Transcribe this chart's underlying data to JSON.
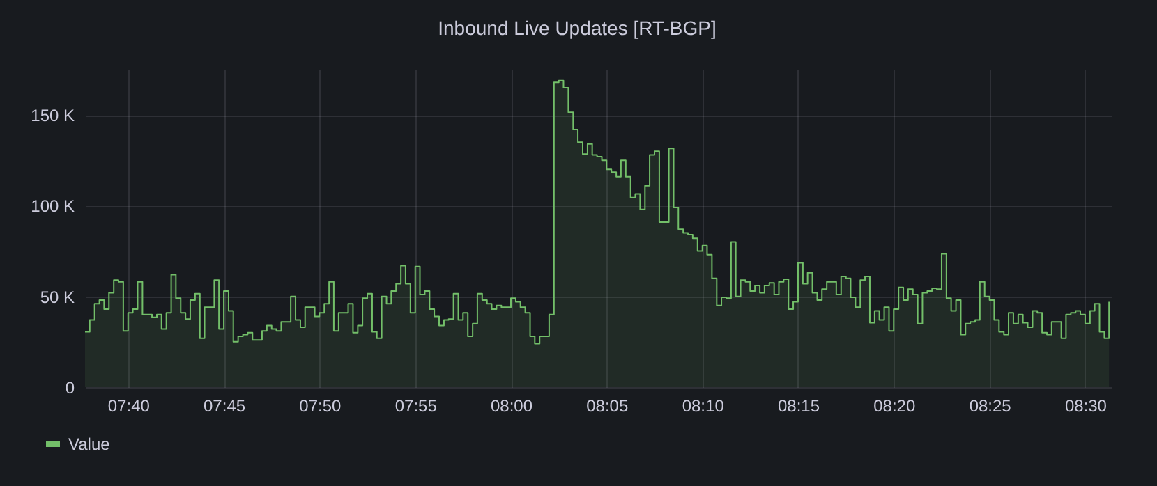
{
  "chart_data": {
    "type": "area",
    "title": "Inbound Live Updates [RT-BGP]",
    "x": [
      7.6292,
      7.6333,
      7.6375,
      7.6417,
      7.6458,
      7.65,
      7.6542,
      7.6583,
      7.6625,
      7.6667,
      7.6708,
      7.675,
      7.6792,
      7.6833,
      7.6875,
      7.6917,
      7.6958,
      7.7,
      7.7042,
      7.7083,
      7.7125,
      7.7167,
      7.7208,
      7.725,
      7.7292,
      7.7333,
      7.7375,
      7.7417,
      7.7458,
      7.75,
      7.7542,
      7.7583,
      7.7625,
      7.7667,
      7.7708,
      7.775,
      7.7792,
      7.7833,
      7.7875,
      7.7917,
      7.7958,
      7.8,
      7.8042,
      7.8083,
      7.8125,
      7.8167,
      7.8208,
      7.825,
      7.8292,
      7.8333,
      7.8375,
      7.8417,
      7.8458,
      7.85,
      7.8542,
      7.8583,
      7.8625,
      7.8667,
      7.8708,
      7.875,
      7.8792,
      7.8833,
      7.8875,
      7.8917,
      7.8958,
      7.9,
      7.9042,
      7.9083,
      7.9125,
      7.9167,
      7.9208,
      7.925,
      7.9292,
      7.9333,
      7.9375,
      7.9417,
      7.9458,
      7.95,
      7.9542,
      7.9583,
      7.9625,
      7.9667,
      7.9708,
      7.975,
      7.9792,
      7.9833,
      7.9875,
      7.9917,
      7.9958,
      8.0,
      8.0042,
      8.0083,
      8.0125,
      8.0167,
      8.0208,
      8.025,
      8.0292,
      8.0333,
      8.0375,
      8.0417,
      8.0458,
      8.05,
      8.0542,
      8.0583,
      8.0625,
      8.0667,
      8.0708,
      8.075,
      8.0792,
      8.0833,
      8.0875,
      8.0917,
      8.0958,
      8.1,
      8.1042,
      8.1083,
      8.1125,
      8.1167,
      8.1208,
      8.125,
      8.1292,
      8.1333,
      8.1375,
      8.1417,
      8.1458,
      8.15,
      8.1542,
      8.1583,
      8.1625,
      8.1667,
      8.1708,
      8.175,
      8.1792,
      8.1833,
      8.1875,
      8.1917,
      8.1958,
      8.2,
      8.2042,
      8.2083,
      8.2125,
      8.2167,
      8.2208,
      8.225,
      8.2292,
      8.2333,
      8.2375,
      8.2417,
      8.2458,
      8.25,
      8.2542,
      8.2583,
      8.2625,
      8.2667,
      8.2708,
      8.275,
      8.2792,
      8.2833,
      8.2875,
      8.2917,
      8.2958,
      8.3,
      8.3042,
      8.3083,
      8.3125,
      8.3167,
      8.3208,
      8.325,
      8.3292,
      8.3333,
      8.3375,
      8.3417,
      8.3458,
      8.35,
      8.3542,
      8.3583,
      8.3625,
      8.3667,
      8.3708,
      8.375,
      8.3792,
      8.3833,
      8.3875,
      8.3917,
      8.3958,
      8.4,
      8.4042,
      8.4083,
      8.4125,
      8.4167,
      8.4208,
      8.425,
      8.4292,
      8.4333,
      8.4375,
      8.4417,
      8.4458,
      8.45,
      8.4542,
      8.4583,
      8.4625,
      8.4667,
      8.4708,
      8.475,
      8.4792,
      8.4833,
      8.4875,
      8.4917,
      8.4958,
      8.5,
      8.5042,
      8.5083,
      8.5125,
      8.5167,
      8.5208
    ],
    "series": [
      {
        "name": "Value",
        "color": "#73bf69",
        "values": [
          30500,
          37000,
          46000,
          48000,
          43000,
          52000,
          59000,
          58000,
          31000,
          41000,
          43000,
          58000,
          40000,
          40000,
          38500,
          40000,
          32000,
          41000,
          62000,
          49000,
          41000,
          37500,
          48000,
          51500,
          27000,
          44000,
          44000,
          59000,
          32000,
          53000,
          42000,
          25000,
          28000,
          29000,
          30000,
          26000,
          26000,
          31000,
          34000,
          32000,
          31000,
          36000,
          36000,
          50000,
          37000,
          33000,
          44000,
          44000,
          39000,
          41000,
          46000,
          58000,
          31000,
          41000,
          41000,
          46000,
          30000,
          34000,
          49000,
          51500,
          30500,
          27000,
          50000,
          46000,
          53000,
          57000,
          67000,
          57000,
          41000,
          66500,
          51000,
          53000,
          43000,
          39000,
          34000,
          37000,
          37500,
          51500,
          37000,
          41000,
          28000,
          35000,
          51500,
          48000,
          46000,
          43000,
          45000,
          44000,
          44000,
          49000,
          47000,
          44000,
          41000,
          28000,
          24000,
          28000,
          28000,
          40000,
          168000,
          169000,
          165000,
          151500,
          142000,
          135000,
          128500,
          134000,
          128000,
          127000,
          125000,
          120000,
          118500,
          116000,
          125000,
          116000,
          104500,
          106500,
          98000,
          111000,
          128000,
          130000,
          91000,
          91000,
          131500,
          99000,
          87000,
          85000,
          84000,
          82000,
          75000,
          78000,
          73000,
          60000,
          45000,
          49500,
          49000,
          80000,
          50000,
          59000,
          58000,
          53000,
          56000,
          52000,
          56000,
          57500,
          51000,
          58000,
          59500,
          43000,
          47000,
          68500,
          57000,
          63000,
          52000,
          48000,
          54000,
          58000,
          58000,
          51000,
          61000,
          60000,
          49500,
          44000,
          59000,
          61000,
          35500,
          42000,
          37000,
          44000,
          31000,
          43000,
          55000,
          48000,
          54000,
          51000,
          35000,
          52000,
          53000,
          54500,
          54000,
          73500,
          49000,
          42000,
          48000,
          29000,
          35000,
          36000,
          37000,
          58000,
          50000,
          48000,
          37000,
          30500,
          29000,
          41000,
          35000,
          40000,
          35500,
          33000,
          42000,
          41000,
          30000,
          29000,
          36000,
          36000,
          27000,
          40000,
          41000,
          42000,
          40000,
          35000,
          42000,
          46000,
          30500,
          27000,
          47000
        ]
      }
    ],
    "xlim": [
      7.6292,
      8.5225
    ],
    "xticks": [
      {
        "value": 7.6667,
        "label": "07:40"
      },
      {
        "value": 7.75,
        "label": "07:45"
      },
      {
        "value": 7.8333,
        "label": "07:50"
      },
      {
        "value": 7.9167,
        "label": "07:55"
      },
      {
        "value": 8.0,
        "label": "08:00"
      },
      {
        "value": 8.0833,
        "label": "08:05"
      },
      {
        "value": 8.1667,
        "label": "08:10"
      },
      {
        "value": 8.25,
        "label": "08:15"
      },
      {
        "value": 8.3333,
        "label": "08:20"
      },
      {
        "value": 8.4167,
        "label": "08:25"
      },
      {
        "value": 8.5,
        "label": "08:30"
      }
    ],
    "ylim": [
      0,
      175000
    ],
    "yticks": [
      0,
      {
        "value": 50000,
        "label": "50 K"
      },
      {
        "value": 100000,
        "label": "100 K"
      },
      {
        "value": 150000,
        "label": "150 K"
      }
    ],
    "grid": true,
    "legend": "bottom"
  }
}
